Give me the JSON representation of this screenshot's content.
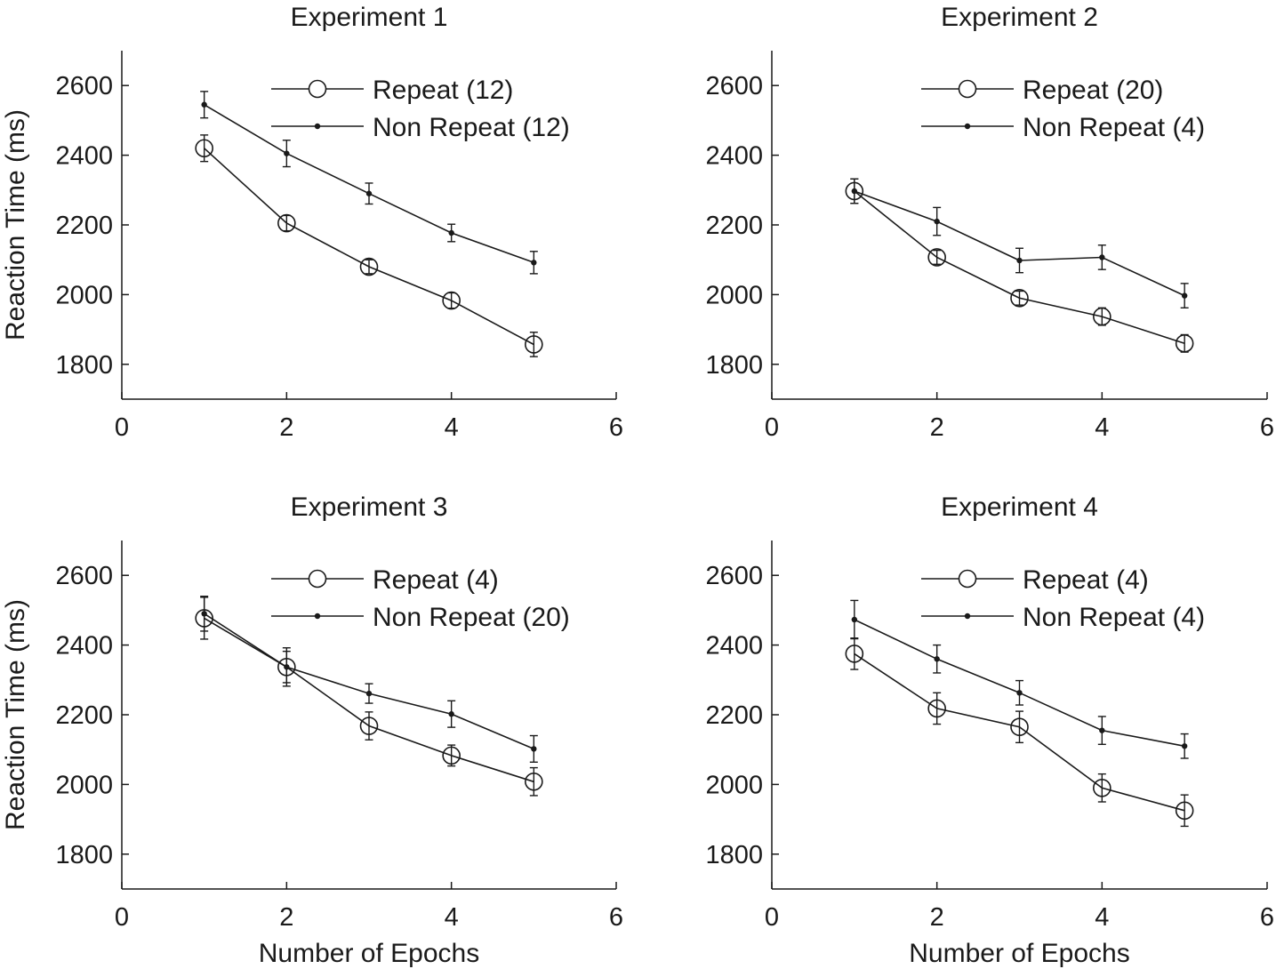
{
  "figure": {
    "ylabel": "Reaction Time (ms)",
    "xlabel": "Number of Epochs"
  },
  "chart_data": [
    {
      "type": "line",
      "title": "Experiment 1",
      "xlabel": "",
      "ylabel": "Reaction Time (ms)",
      "xlim": [
        0,
        6
      ],
      "ylim": [
        1700,
        2700
      ],
      "xticks": [
        0,
        2,
        4,
        6
      ],
      "yticks": [
        1800,
        2000,
        2200,
        2400,
        2600
      ],
      "legend_position": "top-right",
      "x": [
        1,
        2,
        3,
        4,
        5
      ],
      "series": [
        {
          "name": "Repeat (12)",
          "marker": "open-circle",
          "values": [
            2420,
            2205,
            2080,
            1983,
            1857
          ],
          "errors": [
            38,
            22,
            20,
            22,
            35
          ]
        },
        {
          "name": "Non Repeat (12)",
          "marker": "dot",
          "values": [
            2545,
            2405,
            2290,
            2177,
            2092
          ],
          "errors": [
            38,
            38,
            30,
            25,
            32
          ]
        }
      ]
    },
    {
      "type": "line",
      "title": "Experiment 2",
      "xlabel": "",
      "ylabel": "",
      "xlim": [
        0,
        6
      ],
      "ylim": [
        1700,
        2700
      ],
      "xticks": [
        0,
        2,
        4,
        6
      ],
      "yticks": [
        1800,
        2000,
        2200,
        2400,
        2600
      ],
      "legend_position": "top-right",
      "x": [
        1,
        2,
        3,
        4,
        5
      ],
      "series": [
        {
          "name": "Repeat (20)",
          "marker": "open-circle",
          "values": [
            2297,
            2107,
            1990,
            1937,
            1860
          ],
          "errors": [
            35,
            20,
            20,
            25,
            25
          ]
        },
        {
          "name": "Non Repeat (4)",
          "marker": "dot",
          "values": [
            2297,
            2210,
            2098,
            2107,
            1997
          ],
          "errors": [
            35,
            40,
            35,
            35,
            35
          ]
        }
      ]
    },
    {
      "type": "line",
      "title": "Experiment 3",
      "xlabel": "Number of Epochs",
      "ylabel": "Reaction Time (ms)",
      "xlim": [
        0,
        6
      ],
      "ylim": [
        1700,
        2700
      ],
      "xticks": [
        0,
        2,
        4,
        6
      ],
      "yticks": [
        1800,
        2000,
        2200,
        2400,
        2600
      ],
      "legend_position": "top-right",
      "x": [
        1,
        2,
        3,
        4,
        5
      ],
      "series": [
        {
          "name": "Repeat (4)",
          "marker": "open-circle",
          "values": [
            2477,
            2337,
            2168,
            2083,
            2008
          ],
          "errors": [
            60,
            45,
            40,
            30,
            40
          ]
        },
        {
          "name": "Non Repeat (20)",
          "marker": "dot",
          "values": [
            2490,
            2337,
            2261,
            2202,
            2102
          ],
          "errors": [
            50,
            55,
            28,
            38,
            38
          ]
        }
      ]
    },
    {
      "type": "line",
      "title": "Experiment 4",
      "xlabel": "Number of Epochs",
      "ylabel": "",
      "xlim": [
        0,
        6
      ],
      "ylim": [
        1700,
        2700
      ],
      "xticks": [
        0,
        2,
        4,
        6
      ],
      "yticks": [
        1800,
        2000,
        2200,
        2400,
        2600
      ],
      "legend_position": "top-right",
      "x": [
        1,
        2,
        3,
        4,
        5
      ],
      "series": [
        {
          "name": "Repeat (4)",
          "marker": "open-circle",
          "values": [
            2375,
            2218,
            2165,
            1990,
            1925
          ],
          "errors": [
            45,
            45,
            45,
            40,
            45
          ]
        },
        {
          "name": "Non Repeat (4)",
          "marker": "dot",
          "values": [
            2473,
            2360,
            2263,
            2155,
            2110
          ],
          "errors": [
            55,
            40,
            35,
            40,
            35
          ]
        }
      ]
    }
  ]
}
